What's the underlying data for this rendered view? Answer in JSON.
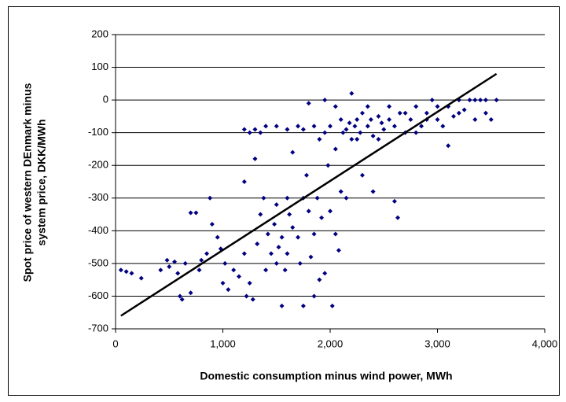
{
  "chart_data": {
    "type": "scatter",
    "xlabel": "Domestic consumption minus wind power, MWh",
    "ylabel": [
      "Spot price of western DEnmark minus",
      "system price, DKK/MWh"
    ],
    "xlim": [
      0,
      4000
    ],
    "ylim": [
      -700,
      200
    ],
    "xticks": [
      0,
      {
        "value": 1000,
        "label": "1,000"
      },
      {
        "value": 2000,
        "label": "2,000"
      },
      {
        "value": 3000,
        "label": "3,000"
      },
      {
        "value": 4000,
        "label": "4,000"
      }
    ],
    "yticks": [
      -700,
      -600,
      -500,
      -400,
      -300,
      -200,
      -100,
      0,
      100,
      200
    ],
    "grid": true,
    "x": [
      50,
      100,
      150,
      240,
      420,
      480,
      500,
      550,
      580,
      600,
      620,
      650,
      700,
      700,
      750,
      780,
      800,
      850,
      880,
      900,
      950,
      980,
      1000,
      1020,
      1050,
      1100,
      1150,
      1200,
      1200,
      1220,
      1250,
      1280,
      1300,
      1320,
      1350,
      1350,
      1380,
      1400,
      1420,
      1450,
      1480,
      1500,
      1500,
      1520,
      1550,
      1550,
      1580,
      1600,
      1600,
      1620,
      1650,
      1650,
      1700,
      1700,
      1720,
      1750,
      1750,
      1780,
      1800,
      1800,
      1820,
      1850,
      1850,
      1880,
      1900,
      1900,
      1920,
      1950,
      1950,
      1980,
      2000,
      2000,
      2020,
      2050,
      2050,
      2080,
      2100,
      2100,
      2120,
      2150,
      2150,
      2180,
      2200,
      2200,
      2230,
      2250,
      2280,
      2300,
      2300,
      2350,
      2380,
      2400,
      2400,
      2450,
      2480,
      2500,
      2550,
      2600,
      2600,
      2630,
      2650,
      2700,
      2750,
      2800,
      2850,
      2900,
      2950,
      3000,
      3050,
      3100,
      3100,
      3150,
      3200,
      3250,
      3300,
      3350,
      3400,
      3450,
      3500,
      3550,
      1200,
      1250,
      1300,
      1400,
      1500,
      1600,
      1750,
      1850,
      1950,
      2050,
      2250,
      2350,
      2450,
      2550,
      2700,
      2800,
      2900,
      3000,
      3200,
      3350,
      3450
    ],
    "series": [
      {
        "color": "#000080",
        "values": [
          -520,
          -525,
          -530,
          -545,
          -520,
          -490,
          -510,
          -495,
          -530,
          -600,
          -610,
          -500,
          -590,
          -345,
          -345,
          -520,
          -490,
          -470,
          -300,
          -380,
          -420,
          -455,
          -560,
          -500,
          -580,
          -520,
          -540,
          -250,
          -470,
          -600,
          -560,
          -610,
          -90,
          -440,
          -100,
          -350,
          -300,
          -520,
          -410,
          -470,
          -380,
          -500,
          -320,
          -450,
          -420,
          -630,
          -520,
          -470,
          -300,
          -350,
          -390,
          -160,
          -80,
          -420,
          -500,
          -630,
          -300,
          -230,
          -340,
          -10,
          -480,
          -600,
          -410,
          -300,
          -550,
          -120,
          -360,
          -530,
          0,
          -200,
          -340,
          -80,
          -630,
          -410,
          -150,
          -460,
          -280,
          -60,
          -100,
          -90,
          -300,
          -70,
          20,
          -120,
          -80,
          -60,
          -100,
          -40,
          -230,
          -80,
          -60,
          -110,
          -280,
          -50,
          -70,
          -90,
          -60,
          -310,
          -80,
          -360,
          -40,
          -100,
          -60,
          -20,
          -80,
          -40,
          0,
          -60,
          -80,
          -140,
          -20,
          -50,
          0,
          -30,
          0,
          -60,
          0,
          -40,
          -60,
          0,
          -90,
          -100,
          -180,
          -80,
          -80,
          -90,
          -90,
          -80,
          -100,
          -20,
          -120,
          -20,
          -120,
          -20,
          -40,
          -100,
          -60,
          -20,
          -40,
          0,
          0
        ]
      }
    ],
    "trendline": {
      "x": [
        50,
        3550
      ],
      "y": [
        -660,
        80
      ],
      "color": "#000000"
    }
  }
}
